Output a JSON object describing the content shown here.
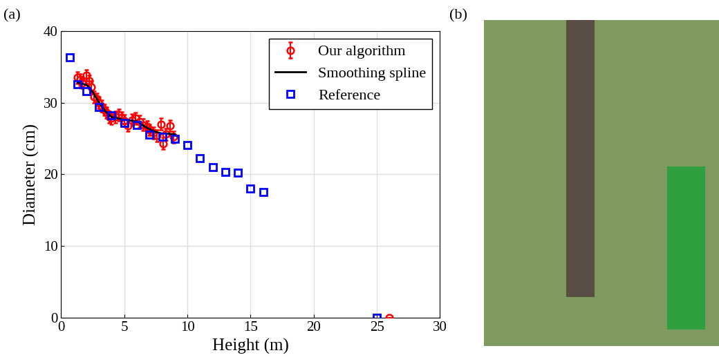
{
  "chart_data": {
    "type": "scatter",
    "annotations": [
      "(a)"
    ],
    "x_label": "Height (m)",
    "y_label": "Diameter (cm)",
    "xlim": [
      0,
      30
    ],
    "xticks": [
      0,
      5,
      10,
      15,
      20,
      25,
      30
    ],
    "ylim": [
      0,
      40
    ],
    "yticks": [
      0,
      10,
      20,
      30,
      40
    ],
    "grid": true,
    "legend": "upper right",
    "series": [
      {
        "name": "Our algorithm",
        "type": "errorbar",
        "color": "#ff0000",
        "marker": "o",
        "x": [
          1.3,
          1.5,
          1.7,
          2.0,
          2.2,
          2.4,
          2.6,
          2.8,
          3.0,
          3.2,
          3.4,
          3.6,
          3.8,
          4.0,
          4.3,
          4.6,
          4.8,
          5.0,
          5.3,
          5.6,
          5.9,
          6.2,
          6.5,
          6.8,
          7.0,
          7.3,
          7.6,
          7.9,
          8.1,
          8.3,
          8.6,
          8.9,
          26
        ],
        "values": [
          33.5,
          33.2,
          32.8,
          33.8,
          33.0,
          32.2,
          30.8,
          30.5,
          30.0,
          29.5,
          29.0,
          28.6,
          28.0,
          27.8,
          28.0,
          28.3,
          27.9,
          27.5,
          26.8,
          27.6,
          27.8,
          27.4,
          26.9,
          26.7,
          26.2,
          25.8,
          25.4,
          27.0,
          24.3,
          25.6,
          26.8,
          25.2,
          0
        ],
        "errors": [
          0.8,
          0.8,
          0.8,
          0.8,
          0.8,
          0.8,
          0.8,
          0.8,
          0.8,
          0.8,
          0.8,
          0.8,
          0.8,
          0.8,
          0.8,
          0.8,
          0.8,
          0.8,
          0.8,
          0.8,
          0.8,
          0.8,
          0.8,
          0.8,
          0.8,
          0.8,
          0.8,
          0.8,
          0.8,
          0.8,
          0.8,
          0.8,
          0
        ]
      },
      {
        "name": "Smoothing spline",
        "type": "line",
        "color": "#000000",
        "line_style": "solid",
        "x": [
          1.3,
          2.0,
          2.5,
          3.0,
          3.5,
          4.0,
          5.0,
          6.0,
          6.5,
          7.0,
          7.5,
          8.0,
          9.0
        ],
        "values": [
          32.8,
          32.5,
          31.5,
          30.0,
          28.8,
          28.0,
          27.6,
          27.4,
          26.8,
          26.3,
          25.9,
          25.7,
          25.6
        ]
      },
      {
        "name": "Reference",
        "type": "scatter",
        "color": "#0000ff",
        "marker": "s",
        "x": [
          0.7,
          1.3,
          2,
          3,
          4,
          5,
          6,
          7,
          8,
          9,
          10,
          11,
          12,
          13,
          14,
          15,
          16,
          25
        ],
        "values": [
          36.3,
          32.6,
          31.6,
          29.4,
          28.2,
          27.2,
          26.9,
          25.5,
          25.2,
          25.0,
          24.1,
          22.3,
          21.0,
          20.3,
          20.2,
          18.0,
          17.5,
          0
        ]
      }
    ]
  },
  "image_panel": {
    "label": "(b)"
  }
}
